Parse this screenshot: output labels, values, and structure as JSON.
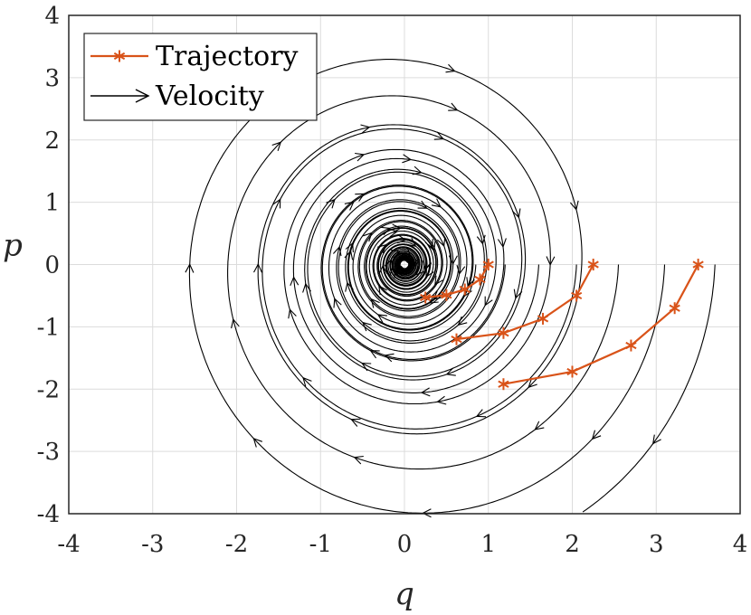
{
  "chart_data": {
    "type": "line",
    "xlabel": "q",
    "ylabel": "p",
    "xlim": [
      -4,
      4
    ],
    "ylim": [
      -4,
      4
    ],
    "xticks": [
      "-4",
      "-3",
      "-2",
      "-1",
      "0",
      "1",
      "2",
      "3",
      "4"
    ],
    "yticks": [
      "-4",
      "-3",
      "-2",
      "-1",
      "0",
      "1",
      "2",
      "3",
      "4"
    ],
    "grid": true,
    "legend": {
      "placement": "top-left",
      "entries": [
        "Trajectory",
        "Velocity"
      ]
    },
    "colors": {
      "trajectory": "#D95319",
      "velocity": "#000000",
      "grid": "#dcdcdc",
      "axis": "#262626"
    },
    "series": [
      {
        "name": "Trajectory",
        "x": [
          1.0,
          0.9,
          0.72,
          0.5,
          0.25
        ],
        "y": [
          0.0,
          -0.24,
          -0.4,
          -0.49,
          -0.53
        ]
      },
      {
        "name": "Trajectory",
        "x": [
          2.25,
          2.05,
          1.65,
          1.18,
          0.62
        ],
        "y": [
          0.0,
          -0.5,
          -0.87,
          -1.1,
          -1.2
        ]
      },
      {
        "name": "Trajectory",
        "x": [
          3.5,
          3.22,
          2.7,
          2.0,
          1.18
        ],
        "y": [
          0.0,
          -0.7,
          -1.3,
          -1.72,
          -1.92
        ]
      }
    ],
    "velocity_field": {
      "type": "streamlines",
      "center": [
        0,
        0
      ],
      "direction": "clockwise spiral inward"
    }
  }
}
